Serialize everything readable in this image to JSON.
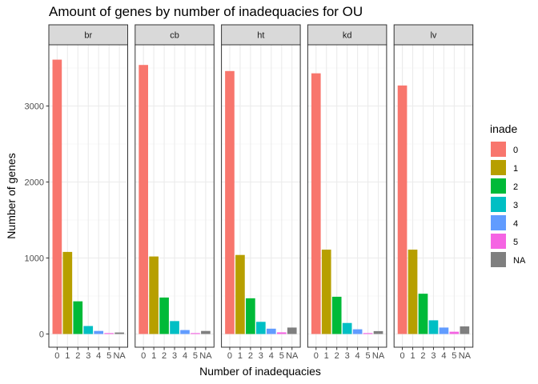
{
  "chart_data": {
    "type": "bar",
    "title": "Amount of genes by number of inadequacies for OU",
    "xlabel": "Number of inadequacies",
    "ylabel": "Number of genes",
    "ylim": [
      0,
      3800
    ],
    "yticks": [
      0,
      1000,
      2000,
      3000
    ],
    "categories": [
      "0",
      "1",
      "2",
      "3",
      "4",
      "5",
      "NA"
    ],
    "facets": [
      {
        "name": "br",
        "values": [
          3610,
          1080,
          430,
          105,
          40,
          12,
          20
        ]
      },
      {
        "name": "cb",
        "values": [
          3540,
          1020,
          480,
          170,
          52,
          12,
          40
        ]
      },
      {
        "name": "ht",
        "values": [
          3460,
          1040,
          470,
          160,
          70,
          22,
          85
        ]
      },
      {
        "name": "kd",
        "values": [
          3430,
          1110,
          490,
          145,
          62,
          12,
          38
        ]
      },
      {
        "name": "lv",
        "values": [
          3270,
          1110,
          530,
          180,
          85,
          30,
          100
        ]
      }
    ],
    "legend": {
      "title": "inade",
      "placement": "right",
      "items": [
        "0",
        "1",
        "2",
        "3",
        "4",
        "5",
        "NA"
      ]
    },
    "colors": [
      "#F8766D",
      "#B79F00",
      "#00BA38",
      "#00BFC4",
      "#619CFF",
      "#F564E3",
      "#7F7F7F"
    ],
    "grid": true
  }
}
